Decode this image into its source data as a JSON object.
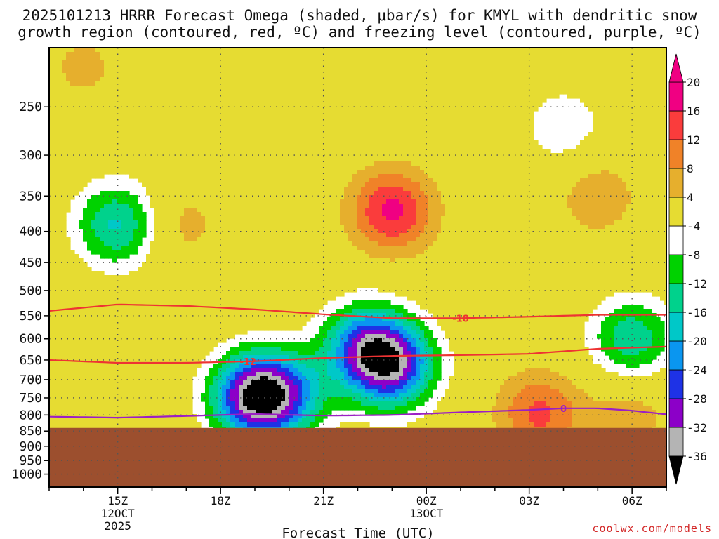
{
  "header": {
    "title_line1": "2025101213 HRRR Forecast Omega (shaded, μbar/s) for KMYL with dendritic snow",
    "title_line2": "growth region (contoured, red, ºC) and freezing level (contoured, purple, ºC)"
  },
  "footer": {
    "credit": "coolwx.com/models"
  },
  "colors": {
    "grid": "#555555",
    "ground": "#9c4f2e",
    "temp_contour": "#ee3333",
    "freezing_contour": "#9b1fc4"
  },
  "chart_data": {
    "type": "heatmap",
    "title": "2025101213 HRRR Forecast Omega (shaded, μbar/s) for KMYL with dendritic snow growth region (contoured, red, ºC) and freezing level (contoured, purple, ºC)",
    "xlabel": "Forecast Time (UTC)",
    "ylabel": "",
    "x_range_hours": [
      13.0,
      31.0
    ],
    "y_range_hPa": [
      200,
      1050
    ],
    "y_scale": "log-pressure",
    "grid": true,
    "x_ticks": [
      {
        "hour": 15,
        "label": "15Z",
        "sub1": "12OCT",
        "sub2": "2025"
      },
      {
        "hour": 18,
        "label": "18Z",
        "sub1": "",
        "sub2": ""
      },
      {
        "hour": 21,
        "label": "21Z",
        "sub1": "",
        "sub2": ""
      },
      {
        "hour": 24,
        "label": "00Z",
        "sub1": "13OCT",
        "sub2": ""
      },
      {
        "hour": 27,
        "label": "03Z",
        "sub1": "",
        "sub2": ""
      },
      {
        "hour": 30,
        "label": "06Z",
        "sub1": "",
        "sub2": ""
      }
    ],
    "y_ticks": [
      250,
      300,
      350,
      400,
      450,
      500,
      550,
      600,
      650,
      700,
      750,
      800,
      850,
      900,
      950,
      1000
    ],
    "surface_pressure_hPa": 840,
    "colorbar": {
      "levels": [
        -36,
        -32,
        -28,
        -24,
        -20,
        -16,
        -12,
        -8,
        -4,
        4,
        8,
        12,
        16,
        20
      ],
      "colors": [
        "#b4b4b4",
        "#8c00c8",
        "#1e32e6",
        "#0a96f0",
        "#00c8c8",
        "#00d28c",
        "#00d200",
        "#ffffff",
        "#e6dc32",
        "#e6af2d",
        "#f08228",
        "#fa3c3c",
        "#f00082"
      ],
      "under_color": "#000000",
      "over_color": "#f00082"
    },
    "omega_features": [
      {
        "hour": 15.0,
        "p": 390,
        "value": -17
      },
      {
        "hour": 19.0,
        "p": 745,
        "value": -34
      },
      {
        "hour": 23.0,
        "p": 370,
        "value": 17
      },
      {
        "hour": 23.0,
        "p": 665,
        "value": -28
      },
      {
        "hour": 22.2,
        "p": 615,
        "value": -21
      },
      {
        "hour": 30.0,
        "p": 600,
        "value": -15
      },
      {
        "hour": 29.0,
        "p": 350,
        "value": 7
      },
      {
        "hour": 16.8,
        "p": 390,
        "value": 6
      },
      {
        "hour": 14.0,
        "p": 215,
        "value": 5
      },
      {
        "hour": 28.0,
        "p": 270,
        "value": -7
      },
      {
        "hour": 27.3,
        "p": 795,
        "value": 13
      },
      {
        "hour": 30.0,
        "p": 790,
        "value": 6
      },
      {
        "hour": 20.0,
        "p": 740,
        "value": -15
      }
    ],
    "contours": [
      {
        "label": "-18",
        "color": "#ee3333",
        "label_hour": 25.0,
        "x": [
          13.0,
          15.0,
          17.0,
          19.0,
          21.0,
          23.0,
          25.0,
          27.0,
          29.0,
          31.0
        ],
        "y": [
          540,
          527,
          530,
          537,
          547,
          555,
          555,
          552,
          548,
          548
        ]
      },
      {
        "label": "-12",
        "color": "#ee3333",
        "label_hour": 18.8,
        "x": [
          13.0,
          15.0,
          17.0,
          19.0,
          21.0,
          23.0,
          25.0,
          27.0,
          29.0,
          31.0
        ],
        "y": [
          650,
          657,
          657,
          653,
          645,
          640,
          638,
          635,
          623,
          618
        ]
      },
      {
        "label": "0",
        "color": "#9b1fc4",
        "label_hour": 28.0,
        "x": [
          13.0,
          15.0,
          17.0,
          19.0,
          21.0,
          23.0,
          25.0,
          27.0,
          28.0,
          29.0,
          30.0,
          31.0
        ],
        "y": [
          805,
          808,
          803,
          797,
          802,
          800,
          792,
          785,
          780,
          780,
          787,
          798
        ]
      }
    ]
  }
}
